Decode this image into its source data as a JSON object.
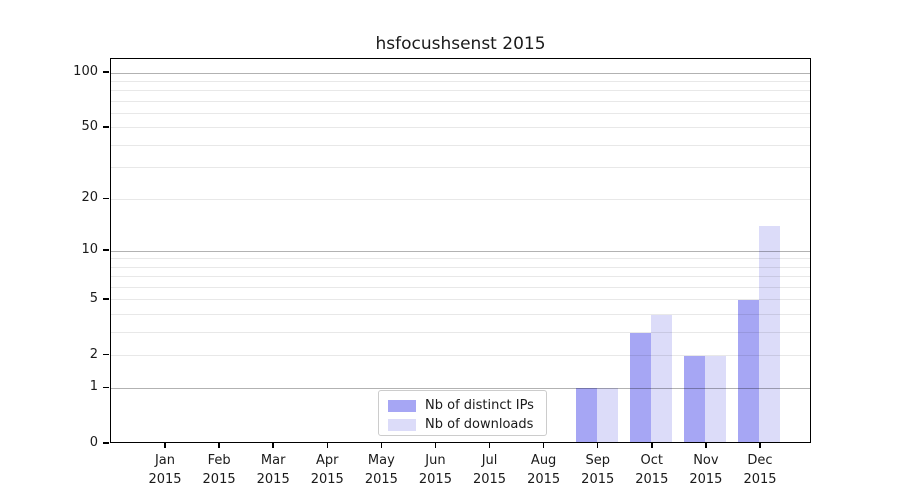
{
  "title": "hsfocushsenst 2015",
  "colors": {
    "ips_bar": "#a6a6f4",
    "downloads_bar": "#dcdcf9",
    "axis": "#000000",
    "background": "#ffffff"
  },
  "chart_data": {
    "type": "bar",
    "title": "hsfocushsenst 2015",
    "categories": [
      "Jan",
      "Feb",
      "Mar",
      "Apr",
      "May",
      "Jun",
      "Jul",
      "Aug",
      "Sep",
      "Oct",
      "Nov",
      "Dec"
    ],
    "x_year": "2015",
    "series": [
      {
        "name": "Nb of distinct IPs",
        "color": "#a6a6f4",
        "values": [
          0,
          0,
          0,
          0,
          0,
          0,
          0,
          0,
          1,
          3,
          2,
          5
        ]
      },
      {
        "name": "Nb of downloads",
        "color": "#dcdcf9",
        "values": [
          0,
          0,
          0,
          0,
          0,
          0,
          0,
          0,
          1,
          4,
          2,
          14
        ]
      }
    ],
    "yscale": "log1p",
    "ylim": [
      0,
      100
    ],
    "yticks": [
      0,
      1,
      2,
      5,
      10,
      20,
      50,
      100
    ],
    "major_gridlines": [
      1,
      10,
      100
    ],
    "minor_gridlines": [
      2,
      3,
      4,
      5,
      6,
      7,
      8,
      9,
      20,
      30,
      40,
      50,
      60,
      70,
      80,
      90
    ],
    "grid": "on",
    "legend_position": "lower center-right inside plot",
    "xlabel": "",
    "ylabel": ""
  }
}
